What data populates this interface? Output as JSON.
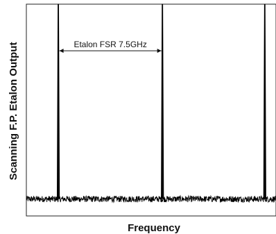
{
  "chart_data": {
    "type": "line",
    "title": "",
    "xlabel": "Frequency",
    "ylabel": "Scanning F.P. Etalon Output",
    "x_ticks_visible": false,
    "y_ticks_visible": false,
    "grid": false,
    "xlim": [
      0,
      1
    ],
    "ylim": [
      0,
      1
    ],
    "noise_floor": 0.08,
    "noise_amplitude": 0.015,
    "peaks": [
      {
        "x": 0.128,
        "height": 1.0
      },
      {
        "x": 0.545,
        "height": 1.0
      },
      {
        "x": 0.955,
        "height": 1.0
      }
    ],
    "annotations": [
      {
        "text": "Etalon FSR 7.5GHz",
        "x_start": 0.128,
        "x_end": 0.545,
        "y": 0.78,
        "type": "double-arrow"
      }
    ],
    "line_color": "#000000"
  }
}
